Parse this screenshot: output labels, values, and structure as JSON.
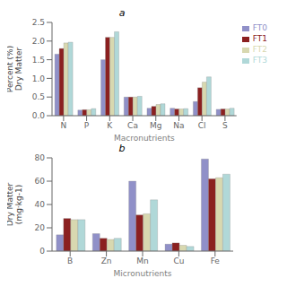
{
  "chart_data": [
    {
      "type": "bar",
      "title": "a",
      "x_label": "Macronutrients",
      "y_label": "Percent (%)\nDry Matter",
      "categories": [
        "N",
        "P",
        "K",
        "Ca",
        "Mg",
        "Na",
        "Cl",
        "S"
      ],
      "series": [
        {
          "name": "FT0",
          "color": "#9090c8",
          "values": [
            1.65,
            0.15,
            1.5,
            0.5,
            0.2,
            0.2,
            0.38,
            0.17
          ]
        },
        {
          "name": "FT1",
          "color": "#8b2020",
          "values": [
            1.8,
            0.16,
            2.1,
            0.5,
            0.25,
            0.18,
            0.75,
            0.18
          ]
        },
        {
          "name": "FT2",
          "color": "#d8d8b0",
          "values": [
            1.95,
            0.16,
            2.1,
            0.5,
            0.3,
            0.18,
            0.9,
            0.18
          ]
        },
        {
          "name": "FT3",
          "color": "#b0d8d8",
          "values": [
            1.97,
            0.19,
            2.25,
            0.52,
            0.32,
            0.19,
            1.04,
            0.2
          ]
        }
      ],
      "ylim": [
        0,
        2.5
      ],
      "yticks": [
        {
          "value": 0,
          "label": "0.0"
        },
        0.5,
        {
          "value": 1,
          "label": "1.0"
        },
        1.5,
        {
          "value": 2,
          "label": "2.0"
        },
        2.5
      ],
      "grid": false,
      "legend": "right"
    },
    {
      "type": "bar",
      "title": "b",
      "x_label": "Micronutrients",
      "y_label": "Dry Matter\n(mg·kg-1)",
      "categories": [
        "B",
        "Zn",
        "Mn",
        "Cu",
        "Fe"
      ],
      "series": [
        {
          "name": "FT0",
          "color": "#9090c8",
          "values": [
            14,
            15,
            60,
            6,
            79
          ]
        },
        {
          "name": "FT1",
          "color": "#8b2020",
          "values": [
            28,
            11,
            31,
            7,
            62
          ]
        },
        {
          "name": "FT2",
          "color": "#d8d8b0",
          "values": [
            27,
            10,
            32,
            5,
            63
          ]
        },
        {
          "name": "FT3",
          "color": "#b0d8d8",
          "values": [
            27,
            11,
            44,
            4,
            66
          ]
        }
      ],
      "ylim": [
        0,
        80
      ],
      "yticks": [
        0,
        20,
        40,
        60,
        80
      ],
      "grid": false
    }
  ]
}
